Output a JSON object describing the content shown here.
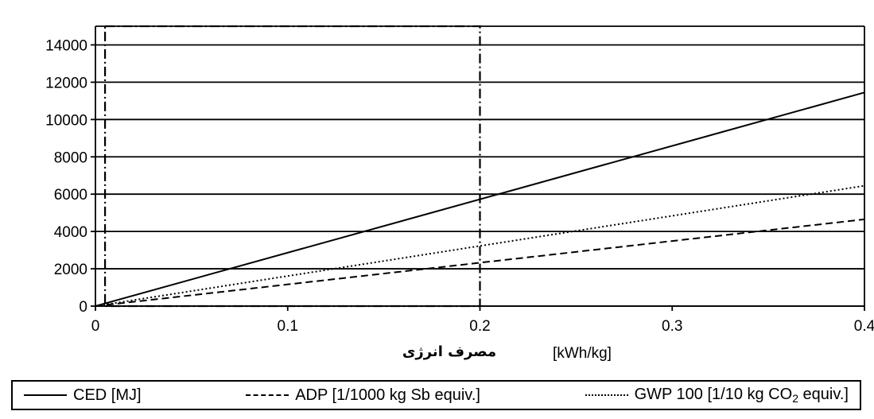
{
  "chart_data": {
    "type": "line",
    "title": "",
    "xlabel": "[kWh/kg]",
    "xlabel_fa": "مصرف انرژی",
    "ylabel": "",
    "xlim": [
      0,
      0.4
    ],
    "ylim": [
      0,
      15000
    ],
    "x_ticks": [
      0,
      0.1,
      0.2,
      0.3,
      0.4
    ],
    "x_tick_labels": [
      "0",
      "0.1",
      "0.2",
      "0.3",
      "0.4"
    ],
    "y_ticks": [
      0,
      2000,
      4000,
      6000,
      8000,
      10000,
      12000,
      14000
    ],
    "y_tick_labels": [
      "0",
      "2000",
      "4000",
      "6000",
      "8000",
      "10000",
      "12000",
      "14000"
    ],
    "grid": "horizontal",
    "legend_position": "bottom",
    "highlight_region": {
      "x": [
        0.005,
        0.2
      ],
      "y": [
        0,
        15000
      ],
      "style": "dash-dot"
    },
    "series": [
      {
        "name": "CED [MJ]",
        "style": "solid",
        "x": [
          0,
          0.4
        ],
        "values": [
          0,
          11450
        ]
      },
      {
        "name": "ADP [1/1000 kg Sb equiv.]",
        "style": "dashed",
        "x": [
          0,
          0.4
        ],
        "values": [
          0,
          4650
        ]
      },
      {
        "name": "GWP 100 [1/10 kg CO2 equiv.]",
        "style": "dotted",
        "x": [
          0,
          0.4
        ],
        "values": [
          0,
          6450
        ]
      }
    ]
  },
  "legend": {
    "items": [
      {
        "label": "CED [MJ]"
      },
      {
        "label": "ADP [1/1000 kg Sb equiv.]"
      },
      {
        "label_pre": "GWP 100 [1/10 kg CO",
        "label_sub": "2",
        "label_post": " equiv.]"
      }
    ]
  },
  "colors": {
    "line": "#000000",
    "background": "#ffffff"
  }
}
